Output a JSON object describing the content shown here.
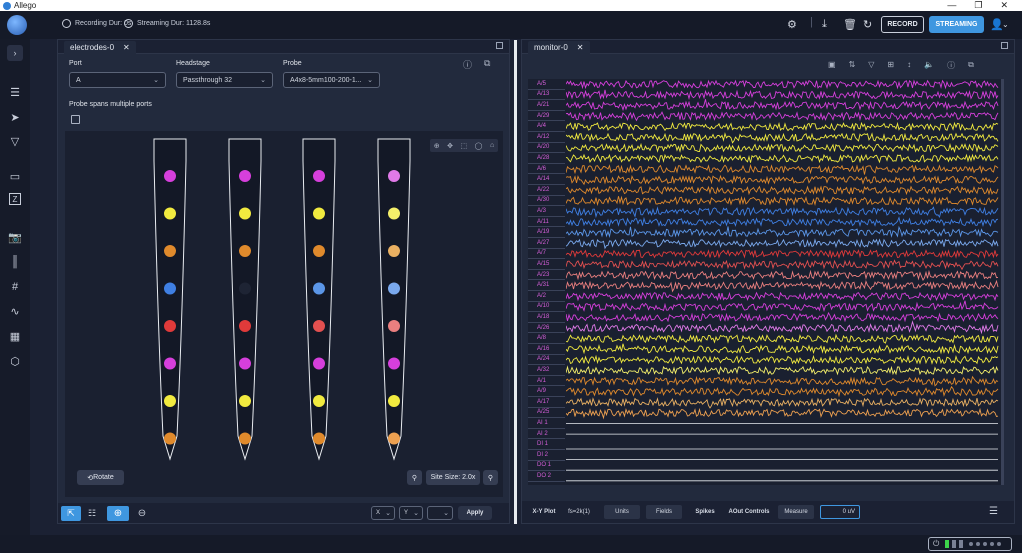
{
  "window": {
    "title": "Allego"
  },
  "topbar": {
    "recording_label": "Recording Dur: 0s",
    "streaming_label": "Streaming Dur: 1128.8s",
    "record_btn": "RECORD",
    "stream_btn": "STREAMING"
  },
  "electrodes_panel": {
    "tab_label": "electrodes-0",
    "port_label": "Port",
    "port_value": "A",
    "headstage_label": "Headstage",
    "headstage_value": "Passthrough 32",
    "probe_label": "Probe",
    "probe_value": "A4x8-5mm100-200-1...",
    "multi_ports_label": "Probe spans multiple ports",
    "rotate_btn": "Rotate",
    "site_size_label": "Site Size: 2.0x",
    "x_sel": "X",
    "y_sel": "Y",
    "apply_btn": "Apply",
    "shanks": [
      [
        "#d63fdc",
        "#f1ea3f",
        "#e08a2c",
        "#3f7fe3",
        "#e03a3a",
        "#d63fdc",
        "#f1ea3f",
        "#e08a2c"
      ],
      [
        "#d63fdc",
        "#f1ea3f",
        "#e08a2c",
        "#1e2434",
        "#e03a3a",
        "#d63fdc",
        "#f1ea3f",
        "#e08a2c"
      ],
      [
        "#d63fdc",
        "#f1ea3f",
        "#e08a2c",
        "#5b96e8",
        "#e35050",
        "#d63fdc",
        "#f1ea3f",
        "#e08a2c"
      ],
      [
        "#e07ae8",
        "#f4ef6a",
        "#e9b062",
        "#7aa9ee",
        "#ea7f7f",
        "#d63fdc",
        "#f1ea3f",
        "#eda050"
      ]
    ]
  },
  "monitor_panel": {
    "tab_label": "monitor-0",
    "channels": [
      "A/5",
      "A/13",
      "A/21",
      "A/29",
      "A/4",
      "A/12",
      "A/20",
      "A/28",
      "A/6",
      "A/14",
      "A/22",
      "A/30",
      "A/3",
      "A/11",
      "A/19",
      "A/27",
      "A/7",
      "A/15",
      "A/23",
      "A/31",
      "A/2",
      "A/10",
      "A/18",
      "A/26",
      "A/8",
      "A/16",
      "A/24",
      "A/32",
      "A/1",
      "A/9",
      "A/17",
      "A/25",
      "AI 1",
      "AI 2",
      "DI 1",
      "DI 2",
      "DO 1",
      "DO 2"
    ],
    "channel_colors": [
      "#d63fdc",
      "#d63fdc",
      "#d63fdc",
      "#d63fdc",
      "#f1ea3f",
      "#f1ea3f",
      "#f1ea3f",
      "#f1ea3f",
      "#e08a2c",
      "#e08a2c",
      "#e08a2c",
      "#e08a2c",
      "#3f7fe3",
      "#3f7fe3",
      "#5b96e8",
      "#7aa9ee",
      "#e03a3a",
      "#e35050",
      "#ea7f7f",
      "#ea7f7f",
      "#d63fdc",
      "#d63fdc",
      "#d63fdc",
      "#e07ae8",
      "#f1ea3f",
      "#f1ea3f",
      "#f1ea3f",
      "#f4ef6a",
      "#e08a2c",
      "#e08a2c",
      "#e9b062",
      "#eda050"
    ],
    "bottom": {
      "xy_plot": "X-Y Plot",
      "fs": "fs=2k(1)",
      "units": "Units",
      "fields": "Fields",
      "spikes": "Spikes",
      "aout": "AOut Controls",
      "measure": "Measure",
      "value": "0 uV"
    }
  },
  "icons": [
    "menu-icon",
    "calendar-icon",
    "sort-icon",
    "filter-icon",
    "grid-icon",
    "height-icon",
    "speaker-icon",
    "help-icon",
    "popout-icon"
  ]
}
